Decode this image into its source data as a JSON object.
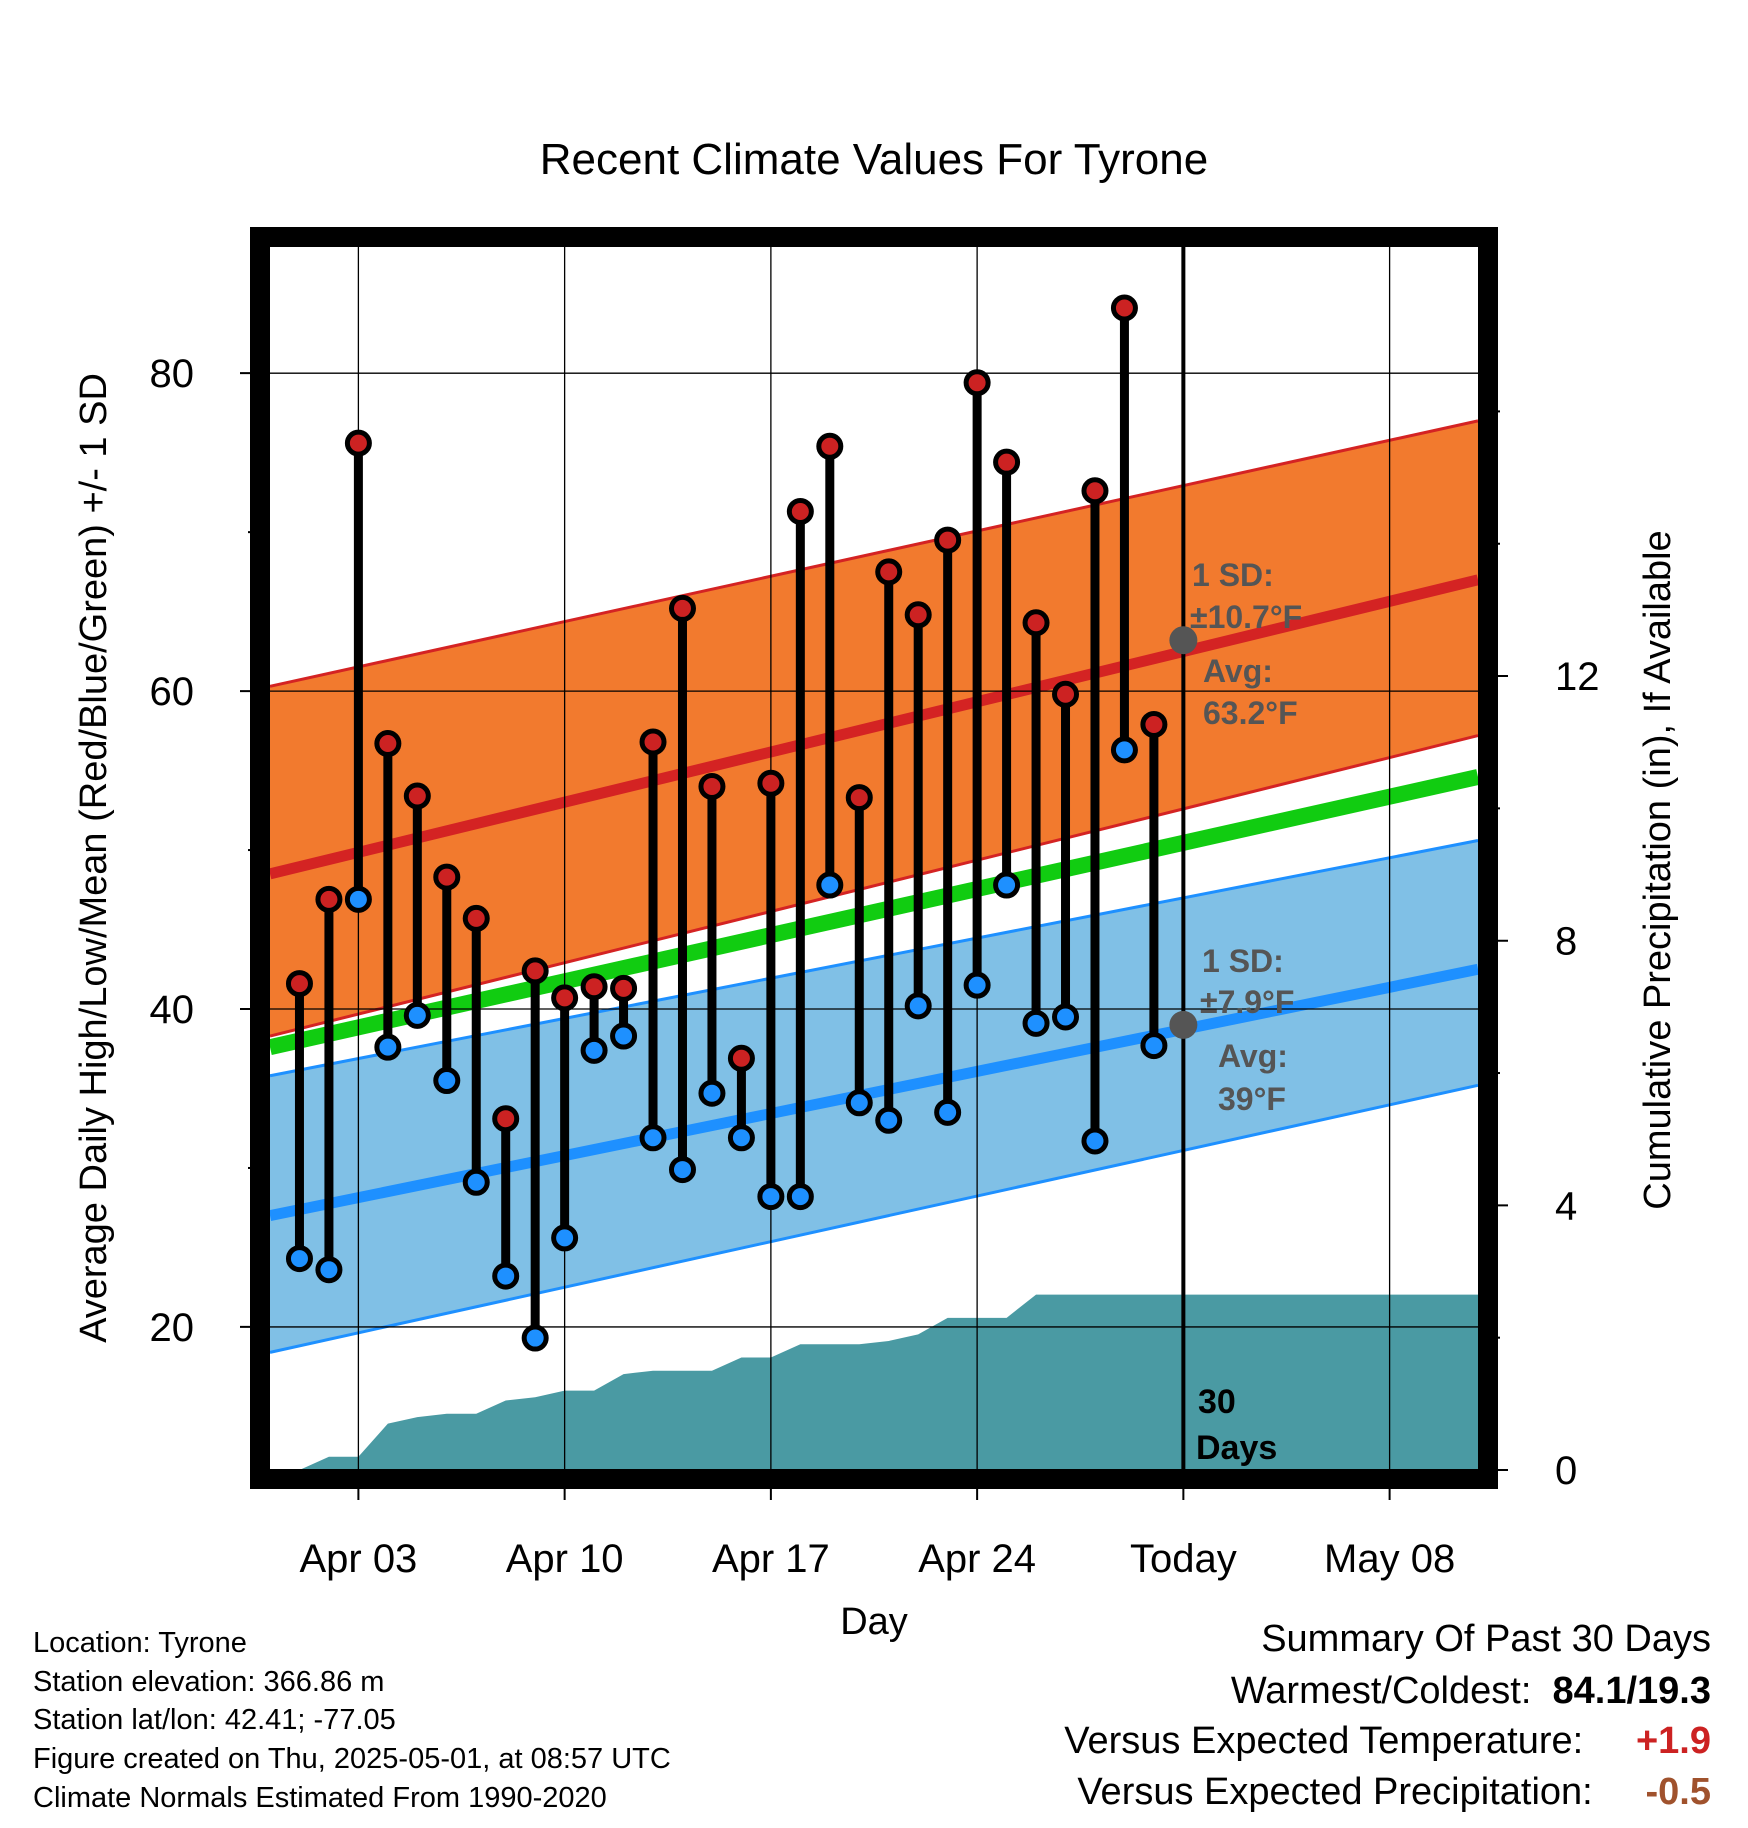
{
  "chart_data": {
    "type": "line",
    "title": "Recent Climate Values For Tyrone",
    "xlabel": "Day",
    "ylabel": "Average Daily High/Low/Mean (Red/Blue/Green) +/- 1 SD",
    "y2label": "Cumulative Precipitation (in), If Available",
    "ylim": [
      11,
      88
    ],
    "y2lim": [
      0,
      18.5
    ],
    "y_ticks": [
      "20",
      "40",
      "60",
      "80"
    ],
    "y2_ticks": [
      "0",
      "4",
      "8",
      "12"
    ],
    "x_range": [
      "Mar 31",
      "May 11"
    ],
    "x_ticks": [
      "Apr 03",
      "Apr 10",
      "Apr 17",
      "Apr 24",
      "Today",
      "May 08"
    ],
    "today": "May 01",
    "grid": true,
    "normals": {
      "high_mean": {
        "start": 48.5,
        "end": 67.0,
        "color": "#d42323"
      },
      "high_band": {
        "upper_start": 60.3,
        "upper_end": 77.0,
        "lower_start": 38.3,
        "lower_end": 57.2,
        "color": "#f27a2e"
      },
      "mean": {
        "start": 37.6,
        "end": 54.6,
        "color": "#11cc11"
      },
      "low_mean": {
        "start": 27.0,
        "end": 42.5,
        "color": "#1e90ff"
      },
      "low_band": {
        "upper_start": 35.8,
        "upper_end": 50.6,
        "lower_start": 18.4,
        "lower_end": 35.2,
        "color": "#80c0e6"
      }
    },
    "dates": [
      "Apr 01",
      "Apr 02",
      "Apr 03",
      "Apr 04",
      "Apr 05",
      "Apr 06",
      "Apr 07",
      "Apr 08",
      "Apr 09",
      "Apr 10",
      "Apr 11",
      "Apr 12",
      "Apr 13",
      "Apr 14",
      "Apr 15",
      "Apr 16",
      "Apr 17",
      "Apr 18",
      "Apr 19",
      "Apr 20",
      "Apr 21",
      "Apr 22",
      "Apr 23",
      "Apr 24",
      "Apr 25",
      "Apr 26",
      "Apr 27",
      "Apr 28",
      "Apr 29",
      "Apr 30"
    ],
    "series": [
      {
        "name": "High",
        "color": "#cc2222",
        "values": [
          41.6,
          46.9,
          75.6,
          56.7,
          53.4,
          48.3,
          45.7,
          33.1,
          42.4,
          40.7,
          41.4,
          41.3,
          56.8,
          65.2,
          54.0,
          36.9,
          54.2,
          71.3,
          75.4,
          53.3,
          67.5,
          64.8,
          69.5,
          79.4,
          74.4,
          64.3,
          59.8,
          72.6,
          84.1,
          57.9
        ]
      },
      {
        "name": "Low",
        "color": "#1e90ff",
        "values": [
          24.3,
          23.6,
          46.9,
          37.6,
          39.6,
          35.5,
          29.1,
          23.2,
          19.3,
          25.6,
          37.4,
          38.3,
          31.9,
          29.9,
          34.7,
          31.9,
          28.2,
          28.2,
          47.8,
          34.1,
          33.0,
          40.2,
          33.5,
          41.5,
          47.8,
          39.1,
          39.5,
          31.7,
          56.3,
          37.7
        ]
      },
      {
        "name": "Cumulative Precipitation",
        "color": "#4a9aa3",
        "values": [
          0.0,
          0.2,
          0.2,
          0.7,
          0.8,
          0.85,
          0.85,
          1.05,
          1.1,
          1.2,
          1.2,
          1.45,
          1.5,
          1.5,
          1.5,
          1.7,
          1.7,
          1.9,
          1.9,
          1.9,
          1.95,
          2.05,
          2.3,
          2.3,
          2.3,
          2.65,
          2.65,
          2.65,
          2.65,
          2.65
        ]
      }
    ],
    "annotations": {
      "high": {
        "sd": "1 SD:",
        "sd_val": "±10.7°F",
        "avg": "Avg:",
        "avg_val": "63.2°F",
        "value": 63.2
      },
      "low": {
        "sd": "1 SD:",
        "sd_val": "±7.9°F",
        "avg": "Avg:",
        "avg_val": "39°F",
        "value": 39.0
      },
      "days": [
        "30",
        "Days"
      ]
    }
  },
  "info": {
    "location": "Location: Tyrone",
    "elevation": "Station elevation: 366.86 m",
    "latlon": "Station lat/lon: 42.41; -77.05",
    "created": "Figure created on Thu, 2025-05-01, at 08:57 UTC",
    "normals": "Climate Normals Estimated From 1990-2020"
  },
  "summary": {
    "title": "Summary Of Past 30 Days",
    "warm_label": "Warmest/Coldest:",
    "warm_value": "84.1/19.3",
    "temp_label": "Versus Expected Temperature:",
    "temp_value": "+1.9",
    "temp_color": "#cc2222",
    "precip_label": "Versus Expected Precipitation:",
    "precip_value": "-0.5",
    "precip_color": "#a0522d"
  }
}
